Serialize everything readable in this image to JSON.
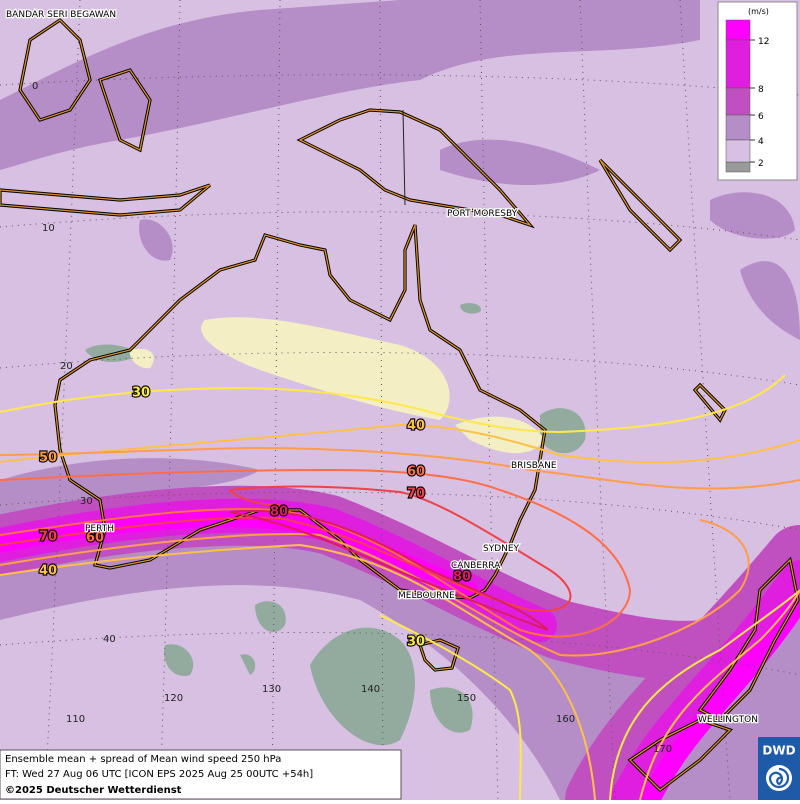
{
  "places": [
    "BANDAR SERI BEGAWAN",
    "PORT MORESBY",
    "BRISBANE",
    "SYDNEY",
    "CANBERRA",
    "MELBOURNE",
    "PERTH",
    "WELLINGTON"
  ],
  "latitude_labels": [
    0,
    10,
    20,
    30,
    40
  ],
  "longitude_labels": [
    110,
    120,
    130,
    140,
    150,
    160,
    170
  ],
  "contours": [
    {
      "level": 30,
      "color": "#ffe84a"
    },
    {
      "level": 40,
      "color": "#ffc048"
    },
    {
      "level": 50,
      "color": "#ff9d48"
    },
    {
      "level": 60,
      "color": "#ff6e46"
    },
    {
      "level": 70,
      "color": "#f0404a"
    },
    {
      "level": 80,
      "color": "#dc1c5c"
    }
  ],
  "legend": {
    "title": "(m/s)",
    "levels": [
      {
        "value": 12,
        "color": "#ff00ff"
      },
      {
        "value": 8,
        "color": "#e01ee0"
      },
      {
        "value": 6,
        "color": "#c050c0"
      },
      {
        "value": 4,
        "color": "#b58ec8"
      },
      {
        "value": 2,
        "color": "#d8c0e2"
      }
    ]
  },
  "footer": {
    "line1": "Ensemble mean + spread of Mean wind speed 250 hPa",
    "line2": "FT: Wed 27 Aug 06 UTC [ICON EPS 2025 Aug 25 00UTC +54h]",
    "line3": "©2025 Deutscher Wetterdienst"
  },
  "logo": "DWD"
}
